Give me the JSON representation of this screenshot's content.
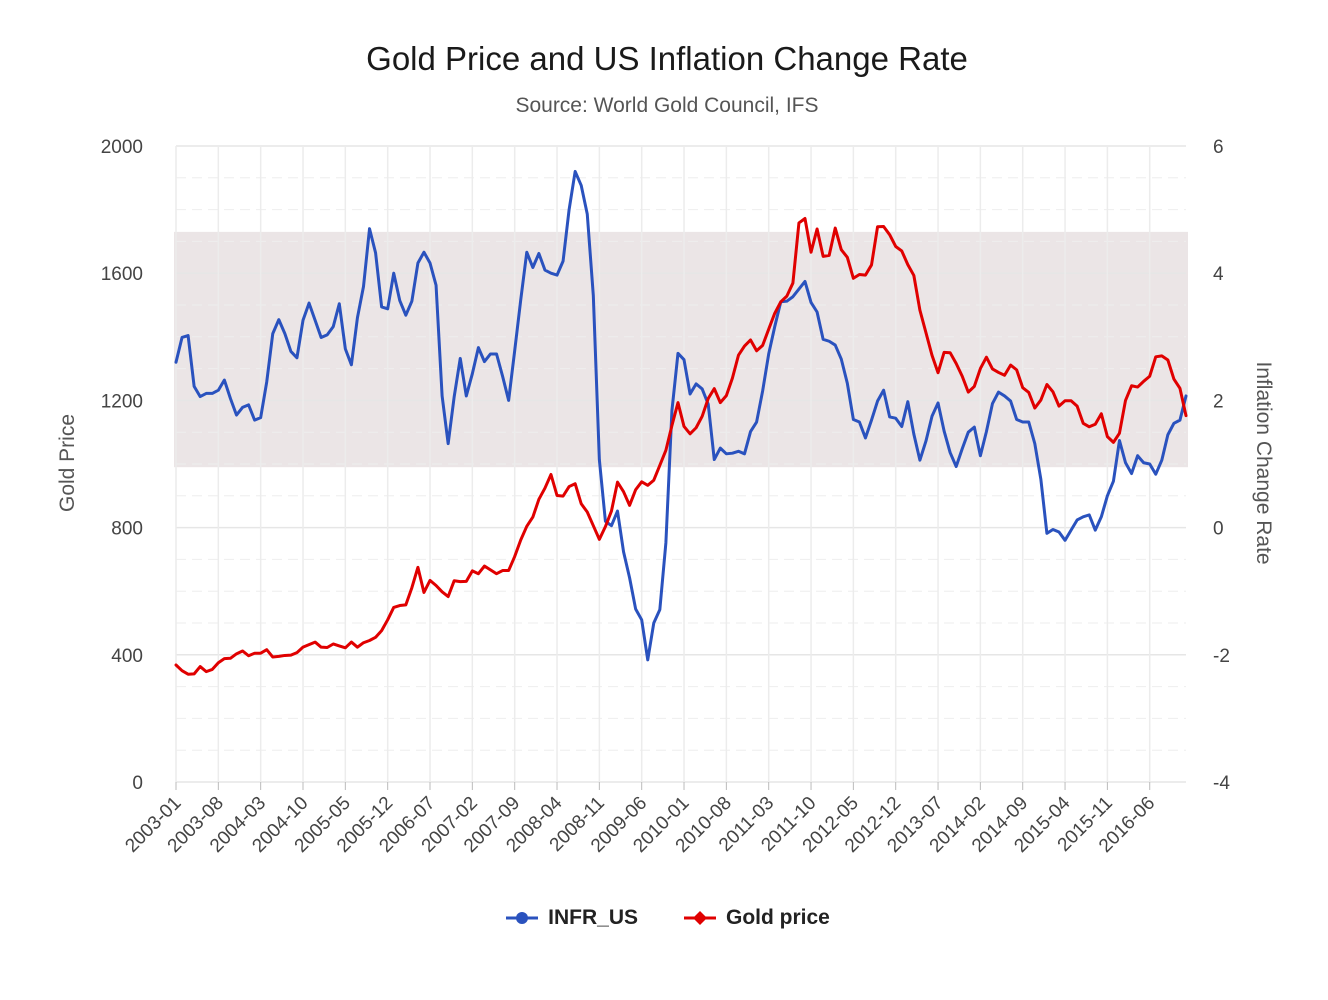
{
  "title": "Gold Price and US Inflation Change Rate",
  "subtitle": "Source: World Gold Council, IFS",
  "chart_data": {
    "type": "line",
    "title": "Gold Price and US Inflation Change Rate",
    "subtitle": "Source: World Gold Council, IFS",
    "x_label_every": 7,
    "left_axis": {
      "title": "Gold Price",
      "min": 0,
      "max": 2000,
      "ticks": [
        0,
        400,
        800,
        1200,
        1600,
        2000
      ]
    },
    "right_axis": {
      "title": "Inflation Change Rate",
      "min": -4,
      "max": 6,
      "ticks": [
        -4,
        -2,
        0,
        2,
        4,
        6
      ]
    },
    "x": [
      "2003-01",
      "2003-02",
      "2003-03",
      "2003-04",
      "2003-05",
      "2003-06",
      "2003-07",
      "2003-08",
      "2003-09",
      "2003-10",
      "2003-11",
      "2003-12",
      "2004-01",
      "2004-02",
      "2004-03",
      "2004-04",
      "2004-05",
      "2004-06",
      "2004-07",
      "2004-08",
      "2004-09",
      "2004-10",
      "2004-11",
      "2004-12",
      "2005-01",
      "2005-02",
      "2005-03",
      "2005-04",
      "2005-05",
      "2005-06",
      "2005-07",
      "2005-08",
      "2005-09",
      "2005-10",
      "2005-11",
      "2005-12",
      "2006-01",
      "2006-02",
      "2006-03",
      "2006-04",
      "2006-05",
      "2006-06",
      "2006-07",
      "2006-08",
      "2006-09",
      "2006-10",
      "2006-11",
      "2006-12",
      "2007-01",
      "2007-02",
      "2007-03",
      "2007-04",
      "2007-05",
      "2007-06",
      "2007-07",
      "2007-08",
      "2007-09",
      "2007-10",
      "2007-11",
      "2007-12",
      "2008-01",
      "2008-02",
      "2008-03",
      "2008-04",
      "2008-05",
      "2008-06",
      "2008-07",
      "2008-08",
      "2008-09",
      "2008-10",
      "2008-11",
      "2008-12",
      "2009-01",
      "2009-02",
      "2009-03",
      "2009-04",
      "2009-05",
      "2009-06",
      "2009-07",
      "2009-08",
      "2009-09",
      "2009-10",
      "2009-11",
      "2009-12",
      "2010-01",
      "2010-02",
      "2010-03",
      "2010-04",
      "2010-05",
      "2010-06",
      "2010-07",
      "2010-08",
      "2010-09",
      "2010-10",
      "2010-11",
      "2010-12",
      "2011-01",
      "2011-02",
      "2011-03",
      "2011-04",
      "2011-05",
      "2011-06",
      "2011-07",
      "2011-08",
      "2011-09",
      "2011-10",
      "2011-11",
      "2011-12",
      "2012-01",
      "2012-02",
      "2012-03",
      "2012-04",
      "2012-05",
      "2012-06",
      "2012-07",
      "2012-08",
      "2012-09",
      "2012-10",
      "2012-11",
      "2012-12",
      "2013-01",
      "2013-02",
      "2013-03",
      "2013-04",
      "2013-05",
      "2013-06",
      "2013-07",
      "2013-08",
      "2013-09",
      "2013-10",
      "2013-11",
      "2013-12",
      "2014-01",
      "2014-02",
      "2014-03",
      "2014-04",
      "2014-05",
      "2014-06",
      "2014-07",
      "2014-08",
      "2014-09",
      "2014-10",
      "2014-11",
      "2014-12",
      "2015-01",
      "2015-02",
      "2015-03",
      "2015-04",
      "2015-05",
      "2015-06",
      "2015-07",
      "2015-08",
      "2015-09",
      "2015-10",
      "2015-11",
      "2015-12",
      "2016-01",
      "2016-02",
      "2016-03",
      "2016-04",
      "2016-05",
      "2016-06",
      "2016-07",
      "2016-08",
      "2016-09",
      "2016-10",
      "2016-11",
      "2016-12"
    ],
    "plot_band": {
      "axis": "right",
      "from": 0.95,
      "to": 4.65,
      "color": "#ebe5e6"
    },
    "series": [
      {
        "name": "INFR_US",
        "axis": "right",
        "color": "#2a52be",
        "marker": "circle",
        "values": [
          2.6,
          2.99,
          3.02,
          2.22,
          2.06,
          2.11,
          2.11,
          2.16,
          2.32,
          2.03,
          1.77,
          1.89,
          1.93,
          1.69,
          1.73,
          2.29,
          3.05,
          3.27,
          3.05,
          2.77,
          2.67,
          3.26,
          3.53,
          3.26,
          2.99,
          3.03,
          3.16,
          3.52,
          2.81,
          2.56,
          3.3,
          3.79,
          4.7,
          4.32,
          3.47,
          3.44,
          4.0,
          3.57,
          3.34,
          3.56,
          4.16,
          4.33,
          4.16,
          3.81,
          2.07,
          1.32,
          2.06,
          2.66,
          2.07,
          2.42,
          2.83,
          2.61,
          2.73,
          2.73,
          2.38,
          2.0,
          2.78,
          3.58,
          4.33,
          4.09,
          4.31,
          4.05,
          4.0,
          3.97,
          4.19,
          5.0,
          5.6,
          5.38,
          4.93,
          3.65,
          1.07,
          0.1,
          0.03,
          0.26,
          -0.38,
          -0.79,
          -1.28,
          -1.45,
          -2.08,
          -1.5,
          -1.29,
          -0.24,
          1.84,
          2.74,
          2.64,
          2.1,
          2.26,
          2.18,
          1.94,
          1.07,
          1.25,
          1.16,
          1.17,
          1.2,
          1.16,
          1.51,
          1.66,
          2.15,
          2.73,
          3.16,
          3.55,
          3.56,
          3.63,
          3.75,
          3.87,
          3.54,
          3.39,
          2.96,
          2.93,
          2.87,
          2.65,
          2.27,
          1.7,
          1.66,
          1.41,
          1.69,
          1.99,
          2.16,
          1.74,
          1.72,
          1.59,
          1.98,
          1.47,
          1.06,
          1.36,
          1.75,
          1.96,
          1.52,
          1.18,
          0.96,
          1.24,
          1.5,
          1.58,
          1.13,
          1.51,
          1.95,
          2.13,
          2.07,
          1.99,
          1.7,
          1.66,
          1.66,
          1.32,
          0.76,
          -0.09,
          -0.03,
          -0.07,
          -0.2,
          -0.04,
          0.12,
          0.17,
          0.2,
          -0.04,
          0.17,
          0.5,
          0.73,
          1.37,
          1.02,
          0.85,
          1.13,
          1.02,
          1.0,
          0.84,
          1.06,
          1.46,
          1.64,
          1.69,
          2.07
        ]
      },
      {
        "name": "Gold price",
        "axis": "left",
        "color": "#e00000",
        "marker": "diamond",
        "values": [
          368,
          350,
          339,
          340,
          363,
          347,
          354,
          375,
          388,
          389,
          403,
          412,
          397,
          405,
          405,
          416,
          393,
          395,
          398,
          399,
          407,
          424,
          432,
          440,
          424,
          423,
          434,
          428,
          422,
          440,
          424,
          438,
          445,
          455,
          476,
          510,
          549,
          555,
          557,
          611,
          675,
          596,
          634,
          618,
          598,
          583,
          633,
          630,
          631,
          664,
          655,
          679,
          667,
          655,
          665,
          665,
          709,
          761,
          804,
          833,
          889,
          924,
          967,
          901,
          899,
          929,
          938,
          875,
          849,
          806,
          763,
          803,
          852,
          943,
          913,
          870,
          919,
          944,
          933,
          949,
          996,
          1043,
          1121,
          1193,
          1118,
          1095,
          1114,
          1150,
          1206,
          1237,
          1193,
          1215,
          1270,
          1342,
          1371,
          1390,
          1356,
          1373,
          1424,
          1474,
          1510,
          1528,
          1569,
          1758,
          1772,
          1666,
          1739,
          1653,
          1656,
          1742,
          1674,
          1650,
          1584,
          1596,
          1594,
          1626,
          1746,
          1747,
          1721,
          1684,
          1670,
          1627,
          1593,
          1484,
          1413,
          1342,
          1287,
          1351,
          1350,
          1316,
          1276,
          1226,
          1244,
          1300,
          1336,
          1299,
          1288,
          1279,
          1311,
          1296,
          1240,
          1225,
          1176,
          1201,
          1250,
          1227,
          1182,
          1199,
          1199,
          1182,
          1128,
          1117,
          1125,
          1158,
          1086,
          1068,
          1097,
          1200,
          1246,
          1242,
          1260,
          1276,
          1337,
          1340,
          1327,
          1267,
          1238,
          1152
        ]
      }
    ],
    "legend": {
      "position": "bottom-center"
    }
  }
}
